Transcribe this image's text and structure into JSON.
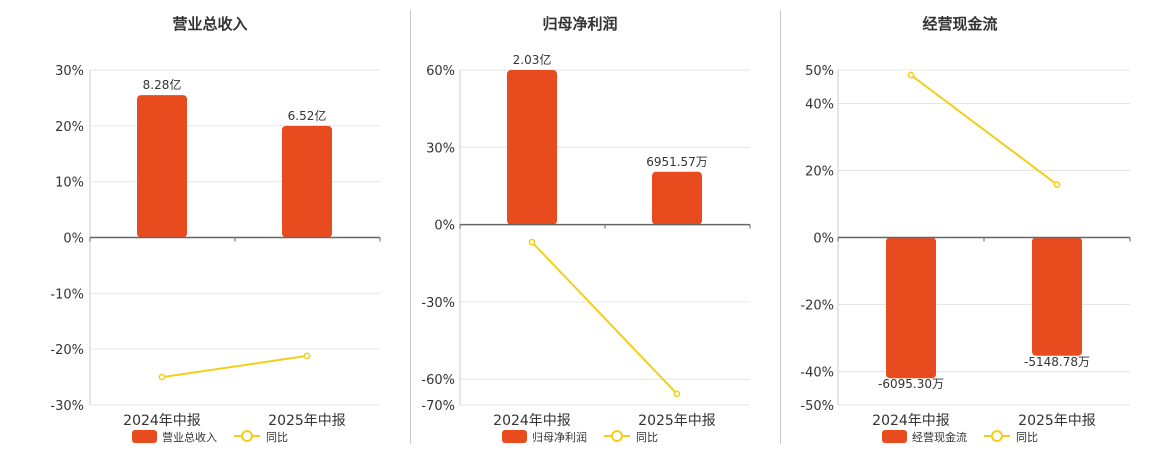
{
  "colors": {
    "bar": "#e84c1e",
    "line": "#f2cf1a",
    "axis": "#666666",
    "grid": "#e6e6e6",
    "text": "#333333"
  },
  "chart_data": [
    {
      "type": "bar",
      "title": "营业总收入",
      "categories": [
        "2024年中报",
        "2025年中报"
      ],
      "series": [
        {
          "name": "营业总收入",
          "type": "bar",
          "values": [
            25.5,
            20.0
          ],
          "labels": [
            "8.28亿",
            "6.52亿"
          ]
        },
        {
          "name": "同比",
          "type": "line",
          "values": [
            -25.0,
            -21.2
          ]
        }
      ],
      "ylim": [
        -30,
        30
      ],
      "yticks": [
        30,
        20,
        10,
        0,
        -10,
        -20,
        -30
      ],
      "ytick_labels": [
        "30%",
        "20%",
        "10%",
        "0%",
        "-10%",
        "-20%",
        "-30%"
      ],
      "legend": "bottom"
    },
    {
      "type": "bar",
      "title": "归母净利润",
      "categories": [
        "2024年中报",
        "2025年中报"
      ],
      "series": [
        {
          "name": "归母净利润",
          "type": "bar",
          "values": [
            60.0,
            20.5
          ],
          "labels": [
            "2.03亿",
            "6951.57万"
          ]
        },
        {
          "name": "同比",
          "type": "line",
          "values": [
            -6.8,
            -65.7
          ]
        }
      ],
      "ylim": [
        -70,
        60
      ],
      "yticks": [
        60,
        30,
        0,
        -30,
        -60,
        -70
      ],
      "ytick_labels": [
        "60%",
        "30%",
        "0%",
        "-30%",
        "-60%",
        "-70%"
      ],
      "legend": "bottom"
    },
    {
      "type": "bar",
      "title": "经营现金流",
      "categories": [
        "2024年中报",
        "2025年中报"
      ],
      "series": [
        {
          "name": "经营现金流",
          "type": "bar",
          "values": [
            -42.0,
            -35.3
          ],
          "labels": [
            "-6095.30万",
            "-5148.78万"
          ]
        },
        {
          "name": "同比",
          "type": "line",
          "values": [
            48.5,
            15.8
          ]
        }
      ],
      "ylim": [
        -50,
        50
      ],
      "yticks": [
        50,
        40,
        20,
        0,
        -20,
        -40,
        -50
      ],
      "ytick_labels": [
        "50%",
        "40%",
        "20%",
        "0%",
        "-20%",
        "-40%",
        "-50%"
      ],
      "legend": "bottom"
    }
  ]
}
